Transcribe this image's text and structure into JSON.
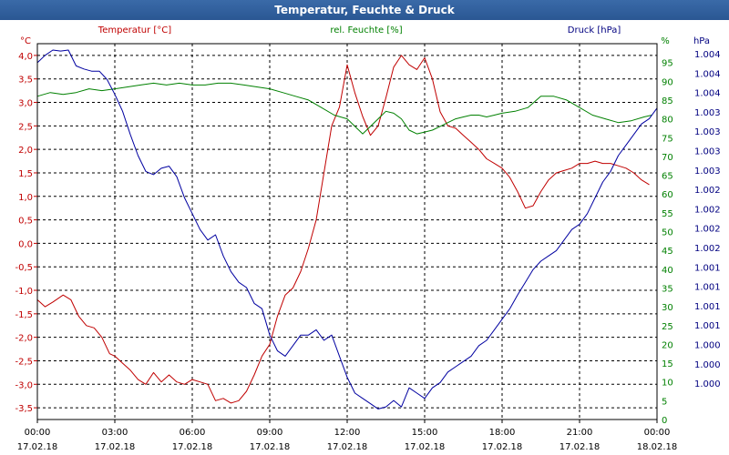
{
  "window": {
    "title": "Temperatur, Feuchte & Druck"
  },
  "headers": {
    "temp_unit": "°C",
    "temp_label": "Temperatur [°C]",
    "hum_label": "rel. Feuchte [%]",
    "hum_unit": "%",
    "press_label": "Druck [hPa]",
    "press_unit": "hPa"
  },
  "colors": {
    "temp": "#c00000",
    "humidity": "#008000",
    "pressure": "#0000a0",
    "title_bg": "#2f5f9e",
    "grid": "#000000"
  },
  "chart_data": {
    "type": "line",
    "title": "Temperatur, Feuchte & Druck",
    "x_ticks": [
      {
        "time": "00:00",
        "date": "17.02.18"
      },
      {
        "time": "03:00",
        "date": "17.02.18"
      },
      {
        "time": "06:00",
        "date": "17.02.18"
      },
      {
        "time": "09:00",
        "date": "17.02.18"
      },
      {
        "time": "12:00",
        "date": "17.02.18"
      },
      {
        "time": "15:00",
        "date": "17.02.18"
      },
      {
        "time": "18:00",
        "date": "17.02.18"
      },
      {
        "time": "21:00",
        "date": "17.02.18"
      },
      {
        "time": "00:00",
        "date": "18.02.18"
      }
    ],
    "xlim": [
      0,
      24
    ],
    "grid": true,
    "axes": {
      "temperature": {
        "label": "Temperatur [°C]",
        "unit": "°C",
        "ylim": [
          -3.75,
          4.25
        ],
        "ticks": [
          "4,0",
          "3,5",
          "3,0",
          "2,5",
          "2,0",
          "1,5",
          "1,0",
          "0,5",
          "0,0",
          "-0,5",
          "-1,0",
          "-1,5",
          "-2,0",
          "-2,5",
          "-3,0",
          "-3,5"
        ]
      },
      "humidity": {
        "label": "rel. Feuchte [%]",
        "unit": "%",
        "ylim": [
          0,
          100
        ],
        "ticks": [
          "95",
          "90",
          "85",
          "80",
          "75",
          "70",
          "65",
          "60",
          "55",
          "50",
          "45",
          "40",
          "35",
          "30",
          "25",
          "20",
          "15",
          "10",
          "5",
          "0"
        ]
      },
      "pressure": {
        "label": "Druck [hPa]",
        "unit": "hPa",
        "ticks": [
          "1.004",
          "1.004",
          "1.004",
          "1.003",
          "1.003",
          "1.003",
          "1.003",
          "1.002",
          "1.002",
          "1.002",
          "1.002",
          "1.001",
          "1.001",
          "1.001",
          "1.001",
          "1.000",
          "1.000",
          "1.000"
        ]
      }
    },
    "series": [
      {
        "name": "Temperatur [°C]",
        "axis": "temperature",
        "color": "#c00000",
        "x": [
          0,
          0.3,
          0.6,
          1.0,
          1.3,
          1.6,
          1.9,
          2.2,
          2.5,
          2.8,
          3.0,
          3.3,
          3.6,
          3.9,
          4.2,
          4.5,
          4.8,
          5.1,
          5.4,
          5.7,
          6.0,
          6.3,
          6.6,
          6.9,
          7.2,
          7.5,
          7.8,
          8.1,
          8.4,
          8.7,
          9.0,
          9.3,
          9.6,
          9.9,
          10.2,
          10.5,
          10.8,
          11.1,
          11.4,
          11.7,
          12.0,
          12.3,
          12.6,
          12.9,
          13.2,
          13.5,
          13.8,
          14.1,
          14.4,
          14.7,
          15.0,
          15.3,
          15.6,
          15.9,
          16.2,
          16.5,
          16.8,
          17.1,
          17.4,
          17.7,
          18.0,
          18.3,
          18.6,
          18.9,
          19.2,
          19.5,
          19.8,
          20.1,
          20.4,
          20.7,
          21.0,
          21.3,
          21.6,
          21.9,
          22.2,
          22.5,
          22.8,
          23.1,
          23.4,
          23.7
        ],
        "values": [
          -1.2,
          -1.35,
          -1.25,
          -1.1,
          -1.2,
          -1.55,
          -1.75,
          -1.8,
          -2.0,
          -2.35,
          -2.4,
          -2.55,
          -2.7,
          -2.9,
          -3.0,
          -2.75,
          -2.95,
          -2.8,
          -2.95,
          -3.0,
          -2.9,
          -2.95,
          -3.0,
          -3.35,
          -3.3,
          -3.4,
          -3.35,
          -3.15,
          -2.8,
          -2.4,
          -2.15,
          -1.55,
          -1.1,
          -0.95,
          -0.6,
          -0.1,
          0.5,
          1.5,
          2.5,
          2.9,
          3.8,
          3.2,
          2.7,
          2.3,
          2.5,
          3.1,
          3.75,
          4.0,
          3.8,
          3.7,
          3.95,
          3.5,
          2.8,
          2.5,
          2.45,
          2.3,
          2.15,
          2.0,
          1.8,
          1.7,
          1.6,
          1.4,
          1.1,
          0.75,
          0.8,
          1.1,
          1.35,
          1.5,
          1.55,
          1.6,
          1.7,
          1.7,
          1.75,
          1.7,
          1.7,
          1.65,
          1.6,
          1.5,
          1.35,
          1.25
        ]
      },
      {
        "name": "rel. Feuchte [%]",
        "axis": "humidity",
        "color": "#008000",
        "x": [
          0,
          0.5,
          1.0,
          1.5,
          2.0,
          2.5,
          3.0,
          3.5,
          4.0,
          4.5,
          5.0,
          5.5,
          6.0,
          6.5,
          7.0,
          7.5,
          8.0,
          8.5,
          9.0,
          9.5,
          10.0,
          10.5,
          11.0,
          11.5,
          12.0,
          12.3,
          12.6,
          12.9,
          13.2,
          13.5,
          13.8,
          14.1,
          14.4,
          14.7,
          15.0,
          15.3,
          15.6,
          15.9,
          16.2,
          16.5,
          16.8,
          17.1,
          17.4,
          17.7,
          18.0,
          18.5,
          19.0,
          19.5,
          20.0,
          20.5,
          21.0,
          21.5,
          22.0,
          22.5,
          23.0,
          23.5,
          23.8
        ],
        "values": [
          86,
          87,
          86.5,
          87,
          88,
          87.5,
          88,
          88.5,
          89,
          89.5,
          89,
          89.5,
          89,
          89,
          89.5,
          89.5,
          89,
          88.5,
          88,
          87,
          86,
          85,
          83,
          81,
          80,
          78,
          76,
          78,
          80,
          82,
          81.5,
          80,
          77,
          76,
          76.5,
          77,
          78,
          79,
          80,
          80.5,
          81,
          81,
          80.5,
          81,
          81.5,
          82,
          83,
          86,
          86,
          85,
          83,
          81,
          80,
          79,
          79.5,
          80.5,
          81
        ]
      },
      {
        "name": "Druck [hPa]",
        "axis": "pressure",
        "color": "#0000a0",
        "x": [
          0,
          0.3,
          0.6,
          0.9,
          1.2,
          1.5,
          1.8,
          2.1,
          2.4,
          2.7,
          3.0,
          3.3,
          3.6,
          3.9,
          4.2,
          4.5,
          4.8,
          5.1,
          5.4,
          5.7,
          6.0,
          6.3,
          6.6,
          6.9,
          7.2,
          7.5,
          7.8,
          8.1,
          8.4,
          8.7,
          9.0,
          9.3,
          9.6,
          9.9,
          10.2,
          10.5,
          10.8,
          11.1,
          11.4,
          11.7,
          12.0,
          12.3,
          12.6,
          12.9,
          13.2,
          13.5,
          13.8,
          14.1,
          14.4,
          14.7,
          15.0,
          15.3,
          15.6,
          15.9,
          16.2,
          16.5,
          16.8,
          17.1,
          17.4,
          17.7,
          18.0,
          18.3,
          18.6,
          18.9,
          19.2,
          19.5,
          19.8,
          20.1,
          20.4,
          20.7,
          21.0,
          21.3,
          21.6,
          21.9,
          22.2,
          22.5,
          22.8,
          23.1,
          23.4,
          23.7,
          24.0
        ],
        "values": [
          1003.88,
          1003.95,
          1004.0,
          1003.99,
          1004.0,
          1003.85,
          1003.82,
          1003.8,
          1003.8,
          1003.72,
          1003.58,
          1003.42,
          1003.2,
          1003.0,
          1002.85,
          1002.82,
          1002.88,
          1002.9,
          1002.8,
          1002.6,
          1002.45,
          1002.3,
          1002.2,
          1002.25,
          1002.05,
          1001.9,
          1001.8,
          1001.75,
          1001.6,
          1001.55,
          1001.3,
          1001.15,
          1001.1,
          1001.2,
          1001.3,
          1001.3,
          1001.35,
          1001.25,
          1001.3,
          1001.1,
          1000.9,
          1000.75,
          1000.7,
          1000.65,
          1000.6,
          1000.62,
          1000.68,
          1000.62,
          1000.8,
          1000.75,
          1000.7,
          1000.8,
          1000.85,
          1000.95,
          1001.0,
          1001.05,
          1001.1,
          1001.2,
          1001.25,
          1001.35,
          1001.45,
          1001.55,
          1001.68,
          1001.8,
          1001.92,
          1002.0,
          1002.05,
          1002.1,
          1002.2,
          1002.3,
          1002.35,
          1002.45,
          1002.6,
          1002.75,
          1002.85,
          1003.0,
          1003.1,
          1003.2,
          1003.3,
          1003.35,
          1003.45
        ]
      }
    ]
  }
}
